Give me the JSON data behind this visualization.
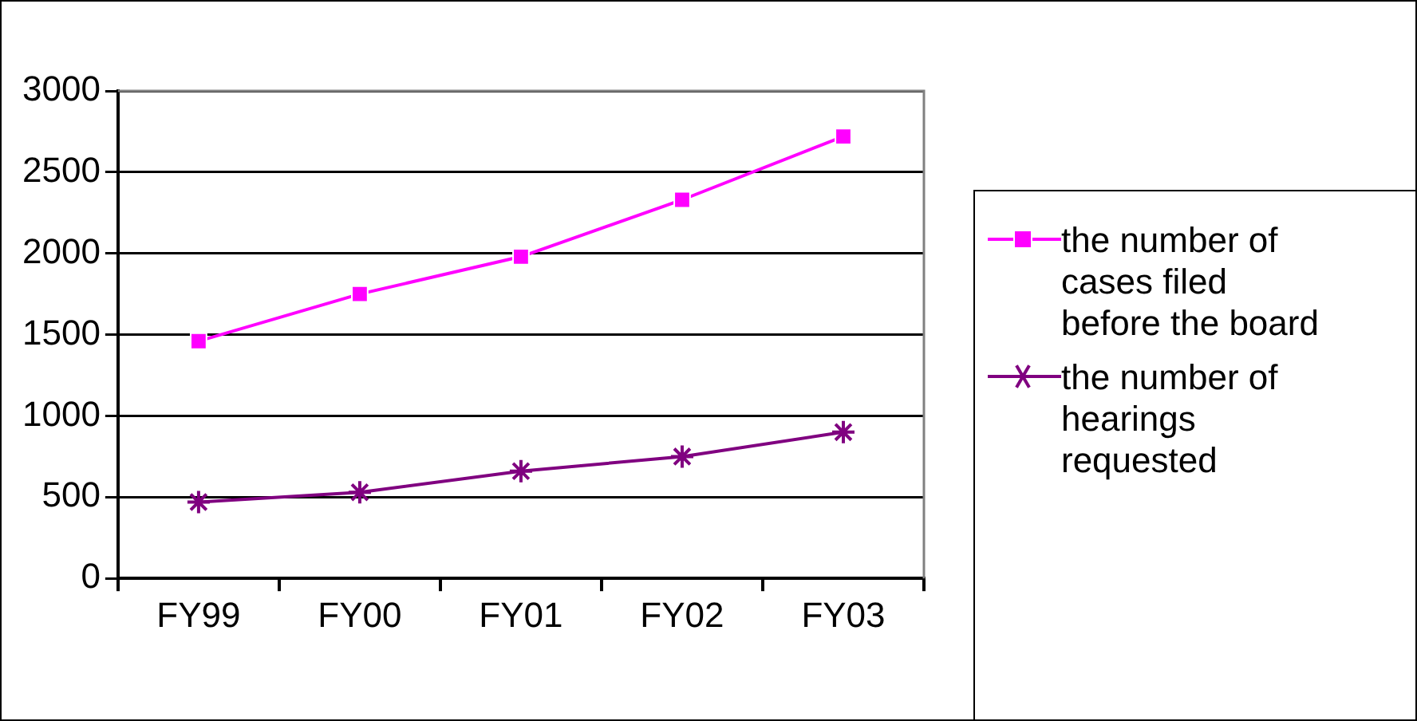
{
  "chart_data": {
    "type": "line",
    "categories": [
      "FY99",
      "FY00",
      "FY01",
      "FY02",
      "FY03"
    ],
    "series": [
      {
        "name": "the number of cases filed before the board",
        "color": "#ff00ff",
        "marker": "square",
        "values": [
          1460,
          1750,
          1980,
          2330,
          2720
        ]
      },
      {
        "name": "the number of hearings requested",
        "color": "#800080",
        "marker": "cross",
        "values": [
          470,
          530,
          660,
          750,
          900
        ]
      }
    ],
    "ylim": [
      0,
      3000
    ],
    "yticks": [
      0,
      500,
      1000,
      1500,
      2000,
      2500,
      3000
    ],
    "grid": "y",
    "legend": "right",
    "line_style": "solid"
  }
}
